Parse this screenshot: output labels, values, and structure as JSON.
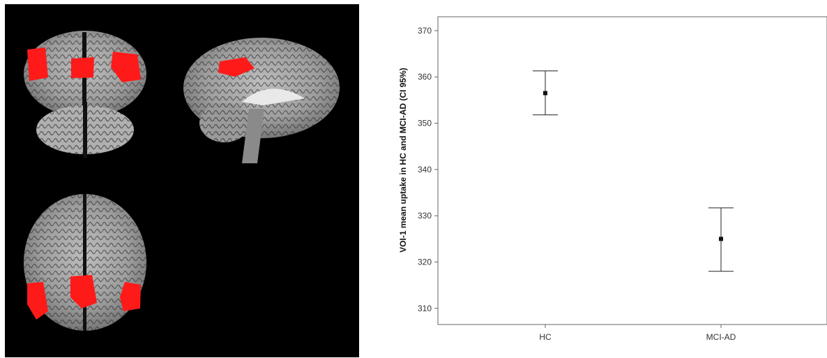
{
  "figure": {
    "left_panel": {
      "background": "#000000",
      "highlight_color": "#ff1a1a",
      "views": [
        "coronal",
        "sagittal",
        "axial"
      ]
    }
  },
  "chart_data": {
    "type": "errorbar",
    "title": "",
    "xlabel": "",
    "ylabel": "VOI-1 mean uptake in HC and MCI-AD (CI 95%)",
    "categories": [
      "HC",
      "MCI-AD"
    ],
    "series": [
      {
        "mean": [
          356.5,
          325.0
        ],
        "ci_low": [
          351.8,
          318.0
        ],
        "ci_high": [
          361.3,
          331.7
        ]
      }
    ],
    "ylim": [
      306.5,
      373
    ],
    "yticks": [
      310,
      320,
      330,
      340,
      350,
      360,
      370
    ],
    "grid": false,
    "legend": "none"
  }
}
